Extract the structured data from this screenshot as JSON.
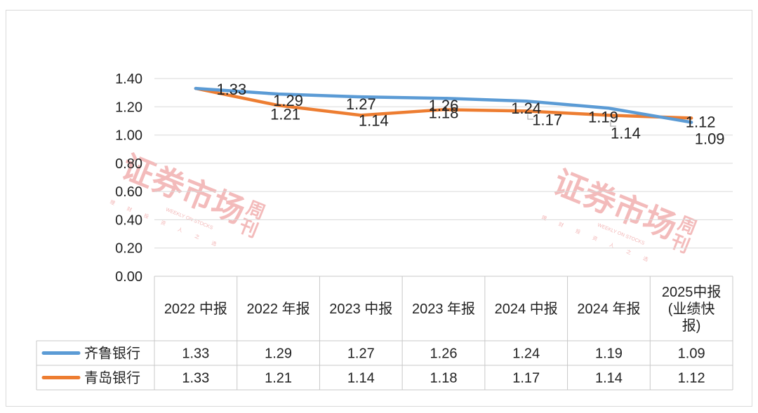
{
  "chart_data": {
    "type": "line",
    "categories": [
      "2022 中报",
      "2022 年报",
      "2023 中报",
      "2023 年报",
      "2024 中报",
      "2024 年报",
      "2025中报(业绩快报)"
    ],
    "category_lines": [
      [
        "2022 中报"
      ],
      [
        "2022 年报"
      ],
      [
        "2023 中报"
      ],
      [
        "2023 年报"
      ],
      [
        "2024 中报"
      ],
      [
        "2024 年报"
      ],
      [
        "2025中报",
        "(业绩快",
        "报)"
      ]
    ],
    "yticks": [
      "0.00",
      "0.20",
      "0.40",
      "0.60",
      "0.80",
      "1.00",
      "1.20",
      "1.40"
    ],
    "ylim": [
      0,
      1.4
    ],
    "grid": true,
    "legend_position": "table-left",
    "series": [
      {
        "name": "齐鲁银行",
        "color": "#5b9bd5",
        "values": [
          1.33,
          1.29,
          1.27,
          1.26,
          1.24,
          1.19,
          1.09
        ],
        "labels": [
          "1.33",
          "1.29",
          "1.27",
          "1.26",
          "1.24",
          "1.19",
          "1.09"
        ]
      },
      {
        "name": "青岛银行",
        "color": "#ed7d31",
        "values": [
          1.33,
          1.21,
          1.14,
          1.18,
          1.17,
          1.14,
          1.12
        ],
        "labels": [
          "1.33",
          "1.21",
          "1.14",
          "1.18",
          "1.17",
          "1.14",
          "1.12"
        ]
      }
    ]
  },
  "watermark": {
    "brand": "证券市场",
    "brand_side": "周刊",
    "tagline": "WEEKLY ON STOCKS",
    "motto": [
      "理",
      "财",
      "投",
      "资",
      "人",
      "之",
      "选"
    ]
  }
}
